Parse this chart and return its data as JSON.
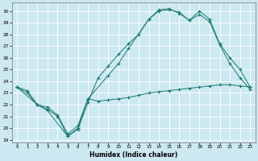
{
  "xlabel": "Humidex (Indice chaleur)",
  "xlim": [
    -0.5,
    23.5
  ],
  "ylim": [
    18.8,
    30.7
  ],
  "xticks": [
    0,
    1,
    2,
    3,
    4,
    5,
    6,
    7,
    8,
    9,
    10,
    11,
    12,
    13,
    14,
    15,
    16,
    17,
    18,
    19,
    20,
    21,
    22,
    23
  ],
  "yticks": [
    19,
    20,
    21,
    22,
    23,
    24,
    25,
    26,
    27,
    28,
    29,
    30
  ],
  "bg_color": "#cce8f0",
  "line_color": "#1a7870",
  "grid_color": "#ffffff",
  "line1_x": [
    0,
    1,
    2,
    3,
    4,
    5,
    6,
    7,
    8,
    9,
    10,
    11,
    12,
    13,
    14,
    15,
    16,
    17,
    18,
    19,
    20,
    21,
    22,
    23
  ],
  "line1_y": [
    23.5,
    23.2,
    22.0,
    21.8,
    21.1,
    19.5,
    20.2,
    22.5,
    22.3,
    22.4,
    22.5,
    22.6,
    22.8,
    23.0,
    23.1,
    23.2,
    23.3,
    23.4,
    23.5,
    23.6,
    23.7,
    23.7,
    23.6,
    23.5
  ],
  "line2_x": [
    0,
    1,
    2,
    3,
    4,
    5,
    6,
    7,
    8,
    9,
    10,
    11,
    12,
    13,
    14,
    15,
    16,
    17,
    18,
    19,
    20,
    21,
    22,
    23
  ],
  "line2_y": [
    23.5,
    23.0,
    22.0,
    21.6,
    21.0,
    19.3,
    19.9,
    22.2,
    24.3,
    25.3,
    26.3,
    27.2,
    28.0,
    29.3,
    30.0,
    30.1,
    29.9,
    29.2,
    29.7,
    29.1,
    27.1,
    25.5,
    24.3,
    23.3
  ],
  "line3_x": [
    0,
    2,
    3,
    5,
    6,
    7,
    9,
    10,
    11,
    13,
    14,
    15,
    16,
    17,
    18,
    19,
    20,
    21,
    22,
    23
  ],
  "line3_y": [
    23.5,
    22.0,
    21.5,
    19.3,
    20.0,
    22.5,
    24.5,
    25.5,
    26.8,
    29.3,
    30.1,
    30.2,
    29.8,
    29.2,
    30.0,
    29.3,
    27.2,
    26.0,
    25.0,
    23.5
  ]
}
